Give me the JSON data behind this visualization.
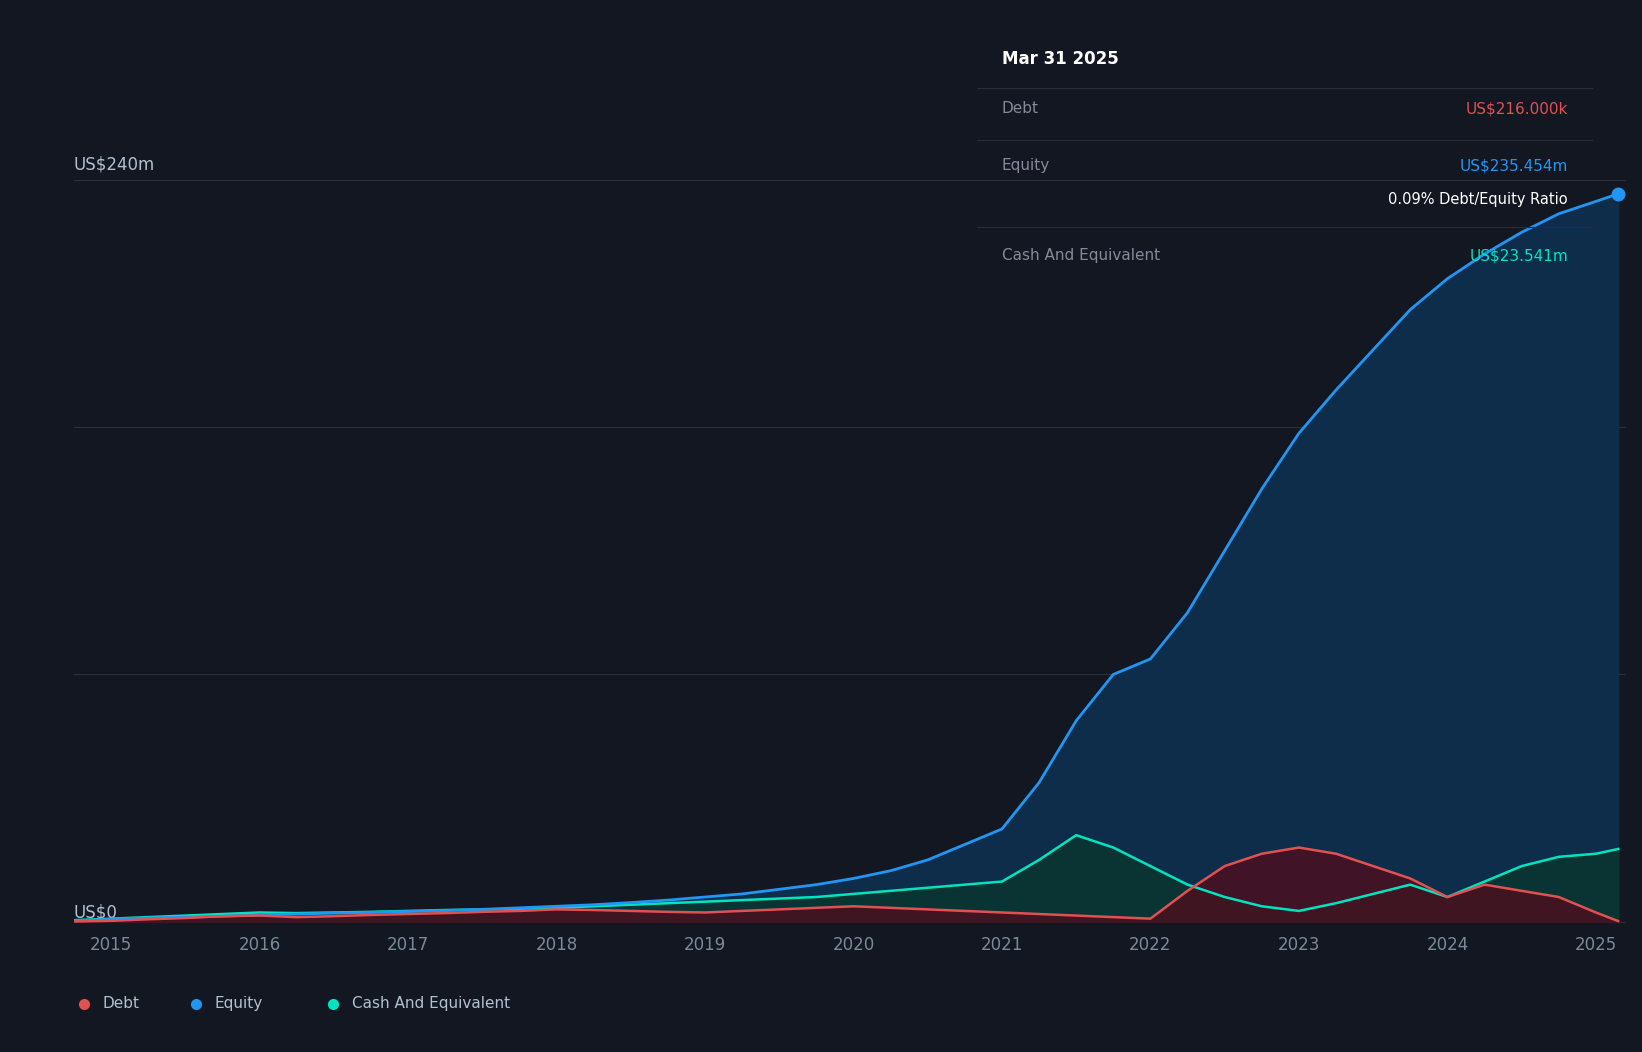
{
  "background_color": "#131722",
  "plot_bg_color": "#131722",
  "grid_color": "#2a3040",
  "title_box": {
    "date": "Mar 31 2025",
    "debt_label": "Debt",
    "debt_value": "US$216.000k",
    "equity_label": "Equity",
    "equity_value": "US$235.454m",
    "ratio_text": "0.09% Debt/Equity Ratio",
    "cash_label": "Cash And Equivalent",
    "cash_value": "US$23.541m"
  },
  "y_label_top": "US$240m",
  "y_label_zero": "US$0",
  "y_max": 240,
  "x_ticks": [
    2015,
    2016,
    2017,
    2018,
    2019,
    2020,
    2021,
    2022,
    2023,
    2024,
    2025
  ],
  "colors": {
    "debt": "#e05252",
    "equity": "#2196f3",
    "cash": "#00e5c0",
    "equity_fill": "#0d2d4a",
    "debt_fill": "#4a1020",
    "cash_fill": "#0a3530"
  },
  "legend": [
    {
      "label": "Debt",
      "color": "#e05252"
    },
    {
      "label": "Equity",
      "color": "#2196f3"
    },
    {
      "label": "Cash And Equivalent",
      "color": "#00e5c0"
    }
  ],
  "equity_data": {
    "years": [
      2014.75,
      2015.0,
      2015.25,
      2015.5,
      2015.75,
      2016.0,
      2016.25,
      2016.5,
      2016.75,
      2017.0,
      2017.25,
      2017.5,
      2017.75,
      2018.0,
      2018.25,
      2018.5,
      2018.75,
      2019.0,
      2019.25,
      2019.5,
      2019.75,
      2020.0,
      2020.25,
      2020.5,
      2020.75,
      2021.0,
      2021.25,
      2021.5,
      2021.75,
      2022.0,
      2022.25,
      2022.5,
      2022.75,
      2023.0,
      2023.25,
      2023.5,
      2023.75,
      2024.0,
      2024.25,
      2024.5,
      2024.75,
      2025.0,
      2025.15
    ],
    "values": [
      0.3,
      0.8,
      1.2,
      1.5,
      1.8,
      2.2,
      2.5,
      2.8,
      3.0,
      3.3,
      3.6,
      4.0,
      4.5,
      5.0,
      5.5,
      6.2,
      7.0,
      8.0,
      9.0,
      10.5,
      12.0,
      14.0,
      16.5,
      20.0,
      25.0,
      30.0,
      45.0,
      65.0,
      80.0,
      85.0,
      100.0,
      120.0,
      140.0,
      158.0,
      172.0,
      185.0,
      198.0,
      208.0,
      216.0,
      223.0,
      229.0,
      233.0,
      235.454
    ]
  },
  "debt_data": {
    "years": [
      2014.75,
      2015.0,
      2015.25,
      2015.5,
      2015.75,
      2016.0,
      2016.25,
      2016.5,
      2016.75,
      2017.0,
      2017.25,
      2017.5,
      2017.75,
      2018.0,
      2018.25,
      2018.5,
      2018.75,
      2019.0,
      2019.25,
      2019.5,
      2019.75,
      2020.0,
      2020.25,
      2020.5,
      2020.75,
      2021.0,
      2021.25,
      2021.5,
      2021.75,
      2022.0,
      2022.25,
      2022.5,
      2022.75,
      2023.0,
      2023.25,
      2023.5,
      2023.75,
      2024.0,
      2024.25,
      2024.5,
      2024.75,
      2025.0,
      2025.15
    ],
    "values": [
      0.1,
      0.3,
      0.8,
      1.2,
      1.8,
      2.0,
      1.5,
      1.8,
      2.2,
      2.5,
      2.8,
      3.2,
      3.5,
      4.0,
      3.8,
      3.5,
      3.2,
      3.0,
      3.5,
      4.0,
      4.5,
      5.0,
      4.5,
      4.0,
      3.5,
      3.0,
      2.5,
      2.0,
      1.5,
      1.0,
      10.0,
      18.0,
      22.0,
      24.0,
      22.0,
      18.0,
      14.0,
      8.0,
      12.0,
      10.0,
      8.0,
      3.0,
      0.216
    ]
  },
  "cash_data": {
    "years": [
      2014.75,
      2015.0,
      2015.25,
      2015.5,
      2015.75,
      2016.0,
      2016.25,
      2016.5,
      2016.75,
      2017.0,
      2017.25,
      2017.5,
      2017.75,
      2018.0,
      2018.25,
      2018.5,
      2018.75,
      2019.0,
      2019.25,
      2019.5,
      2019.75,
      2020.0,
      2020.25,
      2020.5,
      2020.75,
      2021.0,
      2021.25,
      2021.5,
      2021.75,
      2022.0,
      2022.25,
      2022.5,
      2022.75,
      2023.0,
      2023.25,
      2023.5,
      2023.75,
      2024.0,
      2024.25,
      2024.5,
      2024.75,
      2025.0,
      2025.15
    ],
    "values": [
      0.5,
      1.0,
      1.5,
      2.0,
      2.5,
      3.0,
      2.8,
      3.0,
      3.2,
      3.5,
      3.8,
      4.0,
      4.2,
      4.5,
      5.0,
      5.5,
      6.0,
      6.5,
      7.0,
      7.5,
      8.0,
      9.0,
      10.0,
      11.0,
      12.0,
      13.0,
      20.0,
      28.0,
      24.0,
      18.0,
      12.0,
      8.0,
      5.0,
      3.5,
      6.0,
      9.0,
      12.0,
      8.0,
      13.0,
      18.0,
      21.0,
      22.0,
      23.541
    ]
  }
}
